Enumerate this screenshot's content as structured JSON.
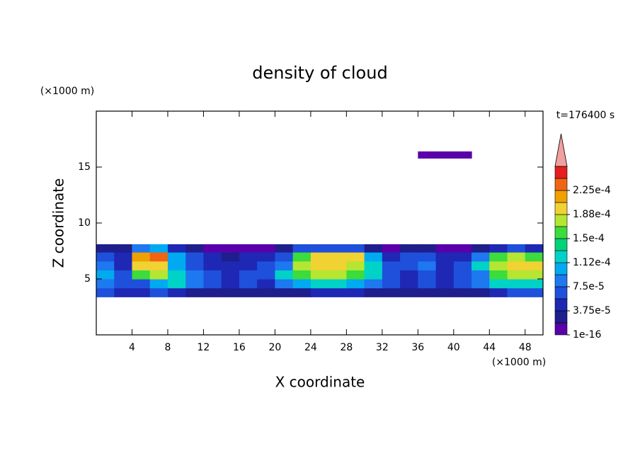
{
  "chart_data": {
    "type": "contour",
    "title": "density of cloud",
    "xlabel": "X coordinate",
    "ylabel": "Z coordinate",
    "xunit": "(×1000 m)",
    "yunit": "(×1000 m)",
    "annotation": "t=176400 s",
    "xlim": [
      0,
      50
    ],
    "ylim": [
      0,
      20
    ],
    "xticks": [
      4,
      8,
      12,
      16,
      20,
      24,
      28,
      32,
      36,
      40,
      44,
      48
    ],
    "yticks": [
      5,
      10,
      15
    ],
    "x_edges": [
      0,
      2,
      4,
      6,
      8,
      10,
      12,
      14,
      16,
      18,
      20,
      22,
      24,
      26,
      28,
      30,
      32,
      34,
      36,
      38,
      40,
      42,
      44,
      46,
      48,
      50
    ],
    "z_edges": [
      3.4,
      4.2,
      5.0,
      5.8,
      6.6,
      7.4,
      8.1,
      15.8,
      16.4
    ],
    "values": [
      [
        6e-05,
        5e-05,
        4e-05,
        6e-05,
        5e-05,
        3e-05,
        2e-05,
        2e-05,
        3e-05,
        2e-05,
        2e-05,
        3e-05,
        4e-05,
        5e-05,
        4e-05,
        3e-05,
        2e-05,
        2e-05,
        3e-05,
        2e-05,
        2e-05,
        3e-05,
        5e-05,
        6e-05,
        6e-05
      ],
      [
        9e-05,
        7e-05,
        6e-05,
        0.00011,
        0.00012,
        8e-05,
        6e-05,
        5e-05,
        7e-05,
        5e-05,
        8e-05,
        0.0001,
        0.00012,
        0.00013,
        0.00011,
        9e-05,
        6e-05,
        5e-05,
        6e-05,
        5e-05,
        6e-05,
        9e-05,
        0.00012,
        0.00013,
        0.00013
      ],
      [
        0.0001,
        6e-05,
        0.00015,
        0.00017,
        0.00012,
        8e-05,
        6e-05,
        5e-05,
        6e-05,
        7e-05,
        0.00013,
        0.00016,
        0.00017,
        0.00017,
        0.00016,
        0.00012,
        7e-05,
        5e-05,
        6e-05,
        5e-05,
        6e-05,
        9e-05,
        0.00015,
        0.00017,
        0.00017
      ],
      [
        8e-05,
        5e-05,
        0.00019,
        0.0002,
        0.0001,
        7e-05,
        4e-05,
        4e-05,
        5e-05,
        6e-05,
        9e-05,
        0.00017,
        0.00019,
        0.00019,
        0.00018,
        0.00012,
        6e-05,
        6e-05,
        8e-05,
        5e-05,
        6e-05,
        0.00012,
        0.00018,
        0.00019,
        0.00019
      ],
      [
        6e-05,
        4e-05,
        0.00021,
        0.00023,
        0.00011,
        6e-05,
        4e-05,
        3e-05,
        4e-05,
        5e-05,
        7e-05,
        0.00016,
        0.00019,
        0.0002,
        0.00019,
        0.0001,
        5e-05,
        6e-05,
        7e-05,
        4e-05,
        5e-05,
        8e-05,
        0.00015,
        0.00017,
        0.00016
      ],
      [
        2e-05,
        2e-05,
        9e-05,
        0.0001,
        5e-05,
        2e-05,
        1e-16,
        1e-16,
        1e-16,
        1e-16,
        3e-05,
        6e-05,
        7e-05,
        7e-05,
        6e-05,
        3e-05,
        1e-16,
        2e-05,
        2e-05,
        1e-16,
        1e-16,
        2e-05,
        5e-05,
        6e-05,
        5e-05
      ],
      [
        null,
        null,
        null,
        null,
        null,
        null,
        null,
        null,
        null,
        null,
        null,
        null,
        null,
        null,
        null,
        null,
        null,
        null,
        null,
        null,
        null,
        null,
        null,
        null,
        null
      ],
      [
        null,
        null,
        null,
        null,
        null,
        null,
        null,
        null,
        null,
        null,
        null,
        null,
        null,
        null,
        null,
        null,
        null,
        null,
        1e-16,
        1e-16,
        1e-16,
        null,
        null,
        null,
        null
      ]
    ],
    "levels": [
      1e-16,
      1.875e-05,
      3.75e-05,
      5.625e-05,
      7.5e-05,
      9.375e-05,
      0.0001125,
      0.00013125,
      0.00015,
      0.00016875,
      0.0001875,
      0.00020625,
      0.000225
    ],
    "cticks": [
      {
        "value": 1e-16,
        "label": "1e-16"
      },
      {
        "value": 3.75e-05,
        "label": "3.75e-5"
      },
      {
        "value": 7.5e-05,
        "label": "7.5e-5"
      },
      {
        "value": 0.0001125,
        "label": "1.12e-4"
      },
      {
        "value": 0.00015,
        "label": "1.5e-4"
      },
      {
        "value": 0.0001875,
        "label": "1.88e-4"
      },
      {
        "value": 0.000225,
        "label": "2.25e-4"
      }
    ],
    "colors": [
      "#5a00aa",
      "#1e1e8c",
      "#1e28b4",
      "#1e50dc",
      "#1e78f0",
      "#00aaf0",
      "#00d2c8",
      "#00d278",
      "#3cdc3c",
      "#b4e632",
      "#f0d232",
      "#f0a000",
      "#f06414",
      "#e61e1e"
    ],
    "extend_color": "#f0a0a0"
  }
}
